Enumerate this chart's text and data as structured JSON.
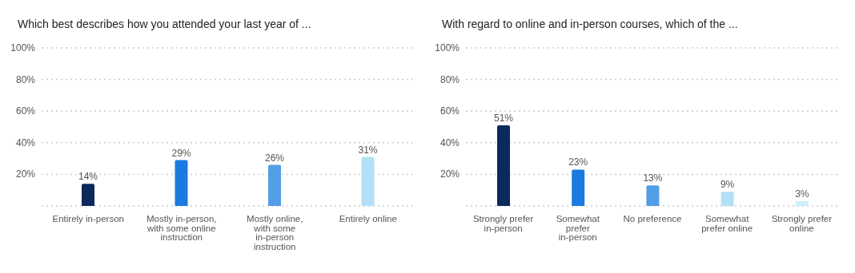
{
  "chart_data": [
    {
      "type": "bar",
      "title": "Which best describes how you attended your last year of ...",
      "categories": [
        "Entirely in-person",
        "Mostly in-person, with some online instruction",
        "Mostly online, with some in-person instruction",
        "Entirely online"
      ],
      "values": [
        14,
        29,
        26,
        31
      ],
      "colors": [
        "#0b2a5b",
        "#1a7ae0",
        "#539ee6",
        "#b3e0f7"
      ],
      "value_labels": [
        "14%",
        "29%",
        "26%",
        "31%"
      ],
      "ylim": [
        0,
        100
      ],
      "yticks": [
        {
          "value": 0,
          "label": null
        },
        {
          "value": 20,
          "label": "20%"
        },
        {
          "value": 40,
          "label": "40%"
        },
        {
          "value": 60,
          "label": "60%"
        },
        {
          "value": 80,
          "label": "80%"
        },
        {
          "value": 100,
          "label": "100%"
        }
      ],
      "grid": "y",
      "legend": false
    },
    {
      "type": "bar",
      "title": "With regard to online and in-person courses, which of the ...",
      "categories": [
        "Strongly prefer in-person",
        "Somewhat prefer in-person",
        "No preference",
        "Somewhat prefer online",
        "Strongly prefer online"
      ],
      "values": [
        51,
        23,
        13,
        9,
        3
      ],
      "colors": [
        "#0b2a5b",
        "#1a7ae0",
        "#539ee6",
        "#b3e0f7",
        "#cdeffb"
      ],
      "value_labels": [
        "51%",
        "23%",
        "13%",
        "9%",
        "3%"
      ],
      "ylim": [
        0,
        100
      ],
      "yticks": [
        {
          "value": 0,
          "label": null
        },
        {
          "value": 20,
          "label": "20%"
        },
        {
          "value": 40,
          "label": "40%"
        },
        {
          "value": 60,
          "label": "60%"
        },
        {
          "value": 80,
          "label": "80%"
        },
        {
          "value": 100,
          "label": "100%"
        }
      ],
      "grid": "y",
      "legend": false
    }
  ]
}
